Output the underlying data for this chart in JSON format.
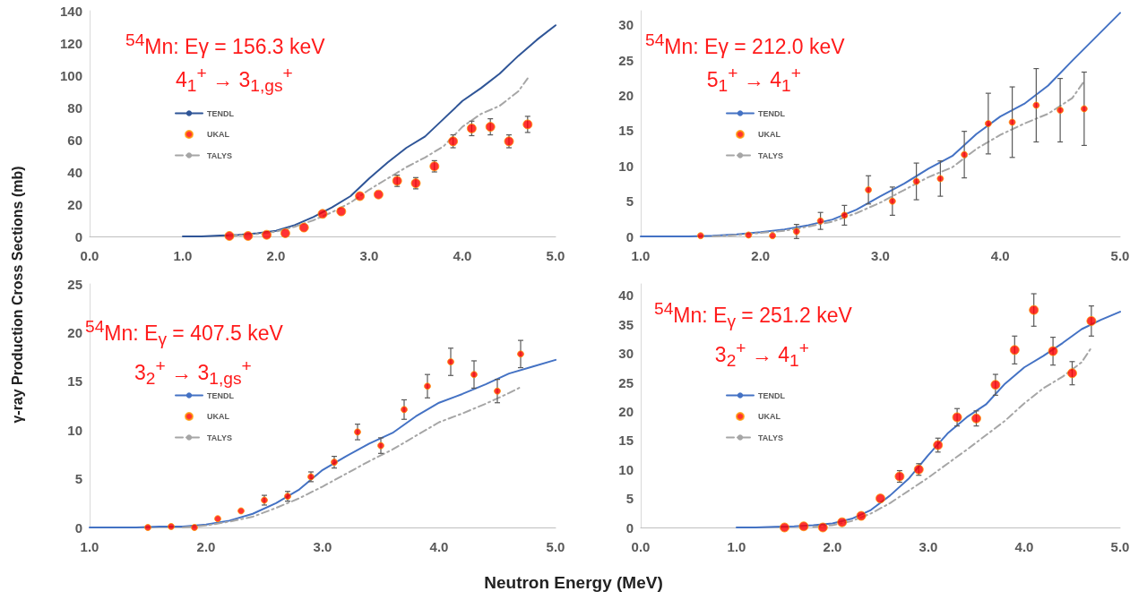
{
  "chart_data": [
    {
      "type": "line",
      "ylabel": "γ-ray Production Cross Sections (mb)",
      "annotations": [
        "$^{54}$Mn: Eγ = 156.3 keV",
        "4$_{1}$$^{+}$ → 3$_{1,gs}$$^{+}$"
      ],
      "xlim": [
        0,
        5
      ],
      "xticks": [
        {
          "value": 0,
          "label": "0.0"
        },
        {
          "value": 1,
          "label": "1.0"
        },
        {
          "value": 2,
          "label": "2.0"
        },
        {
          "value": 3,
          "label": "3.0"
        },
        {
          "value": 4,
          "label": "4.0"
        },
        {
          "value": 5,
          "label": "5.0"
        }
      ],
      "ylim": [
        0,
        140
      ],
      "yticks": [
        0,
        20,
        40,
        60,
        80,
        100,
        120,
        140
      ],
      "grid": false,
      "legend": "left",
      "series": [
        {
          "name": "TENDL",
          "type": "line",
          "color": "#2f5597",
          "marker": "none",
          "line_style": "solid",
          "x": [
            1.0,
            1.2,
            1.4,
            1.6,
            1.8,
            2.0,
            2.2,
            2.4,
            2.6,
            2.8,
            3.0,
            3.2,
            3.4,
            3.6,
            3.8,
            4.0,
            4.2,
            4.4,
            4.6,
            4.8,
            5.0
          ],
          "values": [
            0,
            0,
            0.5,
            1,
            2,
            3.5,
            7,
            12,
            18,
            25,
            36,
            46,
            55,
            62,
            73,
            84,
            92,
            101,
            112,
            122,
            131
          ]
        },
        {
          "name": "UKAL",
          "type": "scatter",
          "color": "#ff0000",
          "marker": "circle",
          "x": [
            1.5,
            1.7,
            1.9,
            2.1,
            2.3,
            2.5,
            2.7,
            2.9,
            3.1,
            3.3,
            3.5,
            3.7,
            3.9,
            4.1,
            4.3,
            4.5,
            4.7
          ],
          "values": [
            0.3,
            0.3,
            1,
            2,
            5.5,
            14,
            15.5,
            25,
            26,
            34.5,
            33,
            43.5,
            59,
            67,
            68,
            59,
            69.5
          ],
          "errors": [
            null,
            null,
            null,
            null,
            null,
            null,
            null,
            null,
            null,
            3.5,
            3.5,
            3.5,
            4,
            4.5,
            5,
            4,
            5
          ]
        },
        {
          "name": "TALYS",
          "type": "line",
          "color": "#a6a6a6",
          "marker": "none",
          "line_style": "dashed",
          "x": [
            1.5,
            1.8,
            2.0,
            2.2,
            2.4,
            2.6,
            2.8,
            3.0,
            3.2,
            3.4,
            3.6,
            3.8,
            4.0,
            4.2,
            4.4,
            4.6,
            4.7
          ],
          "values": [
            0.3,
            1.5,
            3,
            6,
            10,
            15,
            21,
            29,
            36,
            43,
            49,
            56,
            68,
            76,
            81,
            90,
            98
          ]
        }
      ]
    },
    {
      "type": "line",
      "annotations": [
        "$^{54}$Mn: Eγ  = 212.0 keV",
        "5$_{1}$$^{+}$ → 4$_{1}$$^{+}$"
      ],
      "xlim": [
        1,
        5
      ],
      "xticks": [
        {
          "value": 1,
          "label": "1.0"
        },
        {
          "value": 2,
          "label": "2.0"
        },
        {
          "value": 3,
          "label": "3.0"
        },
        {
          "value": 4,
          "label": "4.0"
        },
        {
          "value": 5,
          "label": "5.0"
        }
      ],
      "ylim": [
        0,
        32
      ],
      "yticks": [
        0,
        5,
        10,
        15,
        20,
        25,
        30
      ],
      "grid": false,
      "legend": "left",
      "series": [
        {
          "name": "TENDL",
          "type": "line",
          "color": "#4472c4",
          "marker": "none",
          "line_style": "solid",
          "x": [
            1.0,
            1.2,
            1.4,
            1.6,
            1.8,
            2.0,
            2.2,
            2.4,
            2.6,
            2.8,
            3.0,
            3.2,
            3.4,
            3.6,
            3.8,
            4.0,
            4.2,
            4.4,
            4.6,
            4.8,
            5.0
          ],
          "values": [
            0,
            0,
            0,
            0.1,
            0.3,
            0.6,
            1,
            1.6,
            2.4,
            3.8,
            5.7,
            7.5,
            9.6,
            11.4,
            14.5,
            17,
            18.8,
            21.4,
            24.9,
            28.3,
            31.7
          ]
        },
        {
          "name": "UKAL",
          "type": "scatter",
          "color": "#ff0000",
          "marker": "circle",
          "x": [
            1.5,
            1.9,
            2.1,
            2.3,
            2.5,
            2.7,
            2.9,
            3.1,
            3.3,
            3.5,
            3.7,
            3.9,
            4.1,
            4.3,
            4.5,
            4.7
          ],
          "values": [
            0.1,
            0.2,
            0.1,
            0.7,
            2.2,
            3,
            6.6,
            5,
            7.8,
            8.2,
            11.6,
            16,
            16.2,
            18.6,
            17.9,
            18.1
          ],
          "errors": [
            null,
            null,
            null,
            1,
            1.2,
            1.4,
            2,
            2,
            2.6,
            2.5,
            3.3,
            4.3,
            5,
            5.2,
            4.5,
            5.2
          ]
        },
        {
          "name": "TALYS",
          "type": "line",
          "color": "#a6a6a6",
          "marker": "none",
          "line_style": "dashed",
          "x": [
            1.6,
            1.8,
            2.0,
            2.2,
            2.4,
            2.6,
            2.8,
            3.0,
            3.2,
            3.4,
            3.6,
            3.8,
            4.0,
            4.2,
            4.4,
            4.6,
            4.7
          ],
          "values": [
            0,
            0.2,
            0.5,
            0.8,
            1.4,
            2.1,
            3.3,
            4.8,
            6.6,
            8.4,
            9.8,
            12.4,
            14.4,
            16,
            17.4,
            19.6,
            22
          ]
        }
      ]
    },
    {
      "type": "line",
      "xlabel": "Neutron Energy (MeV)",
      "annotations": [
        "$^{54}$Mn: E$_{γ}$ = 407.5 keV",
        "3$_{2}$$^{+}$ → 3$_{1,gs}$$^{+}$"
      ],
      "xlim": [
        1,
        5
      ],
      "xticks": [
        {
          "value": 1,
          "label": "1.0"
        },
        {
          "value": 2,
          "label": "2.0"
        },
        {
          "value": 3,
          "label": "3.0"
        },
        {
          "value": 4,
          "label": "4.0"
        },
        {
          "value": 5,
          "label": "5.0"
        }
      ],
      "ylim": [
        0,
        25
      ],
      "yticks": [
        0,
        5,
        10,
        15,
        20,
        25
      ],
      "grid": false,
      "legend": "left",
      "series": [
        {
          "name": "TENDL",
          "type": "line",
          "color": "#4472c4",
          "marker": "none",
          "line_style": "solid",
          "x": [
            1.0,
            1.2,
            1.4,
            1.6,
            1.8,
            2.0,
            2.2,
            2.4,
            2.6,
            2.8,
            3.0,
            3.2,
            3.4,
            3.6,
            3.8,
            4.0,
            4.2,
            4.4,
            4.6,
            4.8,
            5.0
          ],
          "values": [
            0,
            0,
            0,
            0.1,
            0.1,
            0.3,
            0.7,
            1.4,
            2.5,
            3.9,
            5.9,
            7.3,
            8.6,
            9.7,
            11.4,
            12.8,
            13.7,
            14.7,
            15.8,
            16.5,
            17.2
          ]
        },
        {
          "name": "UKAL",
          "type": "scatter",
          "color": "#ff0000",
          "marker": "circle",
          "x": [
            1.5,
            1.7,
            1.9,
            2.1,
            2.3,
            2.5,
            2.7,
            2.9,
            3.1,
            3.3,
            3.5,
            3.7,
            3.9,
            4.1,
            4.3,
            4.5,
            4.7
          ],
          "values": [
            0,
            0.1,
            0,
            0.9,
            1.7,
            2.8,
            3.2,
            5.2,
            6.7,
            9.8,
            8.4,
            12.1,
            14.5,
            17,
            15.7,
            14,
            17.8
          ],
          "errors": [
            null,
            null,
            null,
            null,
            null,
            0.5,
            0.5,
            0.5,
            0.6,
            0.8,
            0.8,
            1,
            1.2,
            1.4,
            1.4,
            1.2,
            1.4
          ]
        },
        {
          "name": "TALYS",
          "type": "line",
          "color": "#a6a6a6",
          "marker": "none",
          "line_style": "dashed",
          "x": [
            1.8,
            2.0,
            2.2,
            2.4,
            2.6,
            2.8,
            3.0,
            3.2,
            3.4,
            3.6,
            3.8,
            4.0,
            4.2,
            4.4,
            4.6,
            4.7
          ],
          "values": [
            0,
            0.2,
            0.6,
            1.1,
            2,
            3,
            4.2,
            5.5,
            6.8,
            8,
            9.4,
            10.8,
            11.7,
            12.7,
            13.8,
            14.4
          ]
        }
      ]
    },
    {
      "type": "line",
      "annotations": [
        "$^{54}$Mn: E$_{γ}$ = 251.2 keV",
        "3$_{2}$$^{+}$ → 4$_{1}$$^{+}$"
      ],
      "xlim": [
        0,
        5
      ],
      "xticks": [
        {
          "value": 0,
          "label": "0.0"
        },
        {
          "value": 1,
          "label": "1.0"
        },
        {
          "value": 2,
          "label": "2.0"
        },
        {
          "value": 3,
          "label": "3.0"
        },
        {
          "value": 4,
          "label": "4.0"
        },
        {
          "value": 5,
          "label": "5.0"
        }
      ],
      "ylim": [
        0,
        42
      ],
      "yticks": [
        0,
        5,
        10,
        15,
        20,
        25,
        30,
        35,
        40
      ],
      "grid": false,
      "legend": "left",
      "series": [
        {
          "name": "TENDL",
          "type": "line",
          "color": "#4472c4",
          "marker": "none",
          "line_style": "solid",
          "x": [
            1.0,
            1.2,
            1.4,
            1.6,
            1.8,
            2.0,
            2.2,
            2.4,
            2.6,
            2.8,
            3.0,
            3.2,
            3.4,
            3.6,
            3.8,
            4.0,
            4.2,
            4.4,
            4.6,
            4.8,
            5.0
          ],
          "values": [
            0,
            0,
            0.1,
            0.2,
            0.4,
            0.7,
            1.5,
            3,
            5.5,
            8.5,
            12.5,
            16.2,
            19,
            21.2,
            24.8,
            27.6,
            29.6,
            31.8,
            34.2,
            35.8,
            37.2
          ]
        },
        {
          "name": "UKAL",
          "type": "scatter",
          "color": "#ff0000",
          "marker": "circle",
          "x": [
            1.5,
            1.7,
            1.9,
            2.1,
            2.3,
            2.5,
            2.7,
            2.9,
            3.1,
            3.3,
            3.5,
            3.7,
            3.9,
            4.1,
            4.3,
            4.5,
            4.7
          ],
          "values": [
            0,
            0.2,
            0,
            0.9,
            2,
            5,
            8.8,
            10,
            14.2,
            19,
            18.8,
            24.6,
            30.6,
            37.5,
            30.4,
            26.6,
            35.6
          ],
          "errors": [
            null,
            null,
            null,
            null,
            null,
            null,
            1,
            1,
            1.2,
            1.5,
            1.3,
            1.8,
            2.4,
            2.8,
            2.4,
            2,
            2.6
          ]
        },
        {
          "name": "TALYS",
          "type": "line",
          "color": "#a6a6a6",
          "marker": "none",
          "line_style": "dashed",
          "x": [
            1.8,
            2.0,
            2.2,
            2.4,
            2.6,
            2.8,
            3.0,
            3.2,
            3.4,
            3.6,
            3.8,
            4.0,
            4.2,
            4.4,
            4.6,
            4.7
          ],
          "values": [
            0.1,
            0.4,
            1.1,
            2.4,
            4.2,
            6.4,
            8.6,
            11,
            13.4,
            15.9,
            18.4,
            21.4,
            24,
            26,
            28.5,
            31
          ]
        }
      ]
    }
  ]
}
